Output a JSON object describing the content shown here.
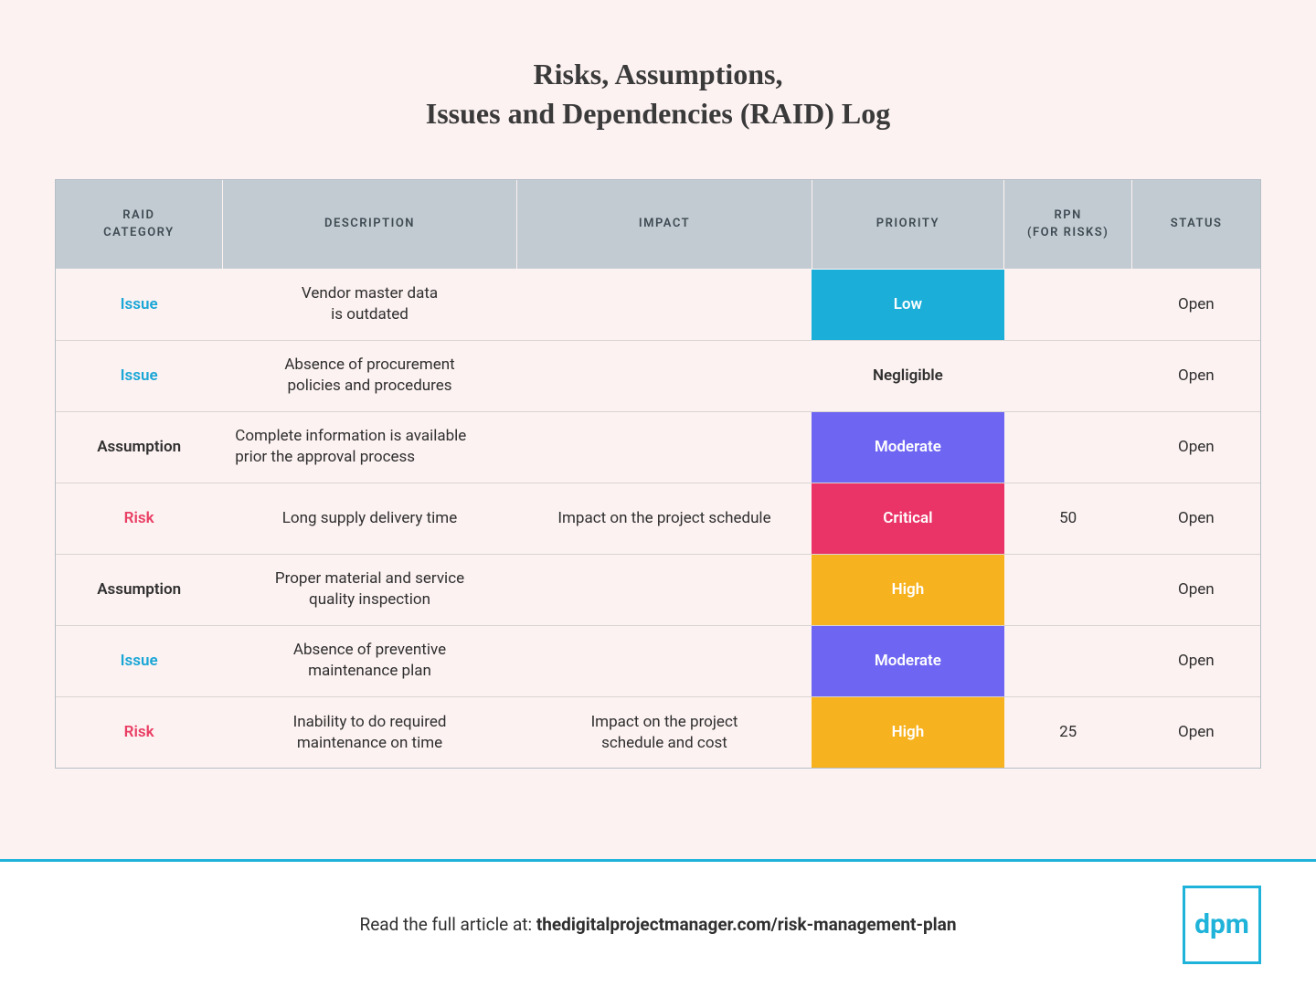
{
  "title_line1": "Risks, Assumptions,",
  "title_line2": "Issues and Dependencies (RAID) Log",
  "table": {
    "columns": [
      {
        "label": "RAID\nCATEGORY",
        "width": "13%"
      },
      {
        "label": "DESCRIPTION",
        "width": "23%"
      },
      {
        "label": "IMPACT",
        "width": "23%"
      },
      {
        "label": "PRIORITY",
        "width": "15%"
      },
      {
        "label": "RPN\n(FOR RISKS)",
        "width": "10%"
      },
      {
        "label": "STATUS",
        "width": "10%"
      }
    ],
    "category_colors": {
      "Issue": "#18a6d6",
      "Assumption": "#2f2f2f",
      "Risk": "#e93e63"
    },
    "priority_colors": {
      "Low": {
        "bg": "#1aaed8",
        "fg": "#ffffff"
      },
      "Negligible": {
        "bg": "",
        "fg": "#2f2f2f"
      },
      "Moderate": {
        "bg": "#6e66f2",
        "fg": "#ffffff"
      },
      "Critical": {
        "bg": "#ea3366",
        "fg": "#ffffff"
      },
      "High": {
        "bg": "#f7b21f",
        "fg": "#ffffff"
      }
    },
    "rows": [
      {
        "category": "Issue",
        "description": "Vendor master data\nis outdated",
        "desc_align": "center",
        "impact": "",
        "priority": "Low",
        "rpn": "",
        "status": "Open"
      },
      {
        "category": "Issue",
        "description": "Absence of procurement\npolicies and procedures",
        "desc_align": "center",
        "impact": "",
        "priority": "Negligible",
        "rpn": "",
        "status": "Open"
      },
      {
        "category": "Assumption",
        "description": "Complete information is available\nprior the approval process",
        "desc_align": "left",
        "impact": "",
        "priority": "Moderate",
        "rpn": "",
        "status": "Open"
      },
      {
        "category": "Risk",
        "description": "Long supply delivery time",
        "desc_align": "center",
        "impact": "Impact on the project schedule",
        "priority": "Critical",
        "rpn": "50",
        "status": "Open"
      },
      {
        "category": "Assumption",
        "description": "Proper material and service\nquality inspection",
        "desc_align": "center",
        "impact": "",
        "priority": "High",
        "rpn": "",
        "status": "Open"
      },
      {
        "category": "Issue",
        "description": "Absence of preventive\nmaintenance plan",
        "desc_align": "center",
        "impact": "",
        "priority": "Moderate",
        "rpn": "",
        "status": "Open"
      },
      {
        "category": "Risk",
        "description": "Inability to do required\nmaintenance on time",
        "desc_align": "center",
        "impact": "Impact on the project\nschedule and cost",
        "priority": "High",
        "rpn": "25",
        "status": "Open"
      }
    ]
  },
  "footer": {
    "prefix": "Read the full article at: ",
    "link": "thedigitalprojectmanager.com/risk-management-plan",
    "logo_text": "dpm",
    "logo_color": "#1fb3da",
    "divider_color": "#1fb3da"
  },
  "background_color": "#fdf2f2",
  "header_bg": "#c2cbd2",
  "header_fg": "#3e4a52",
  "border_color": "#b6bfc6",
  "row_divider": "#d9d3d3"
}
